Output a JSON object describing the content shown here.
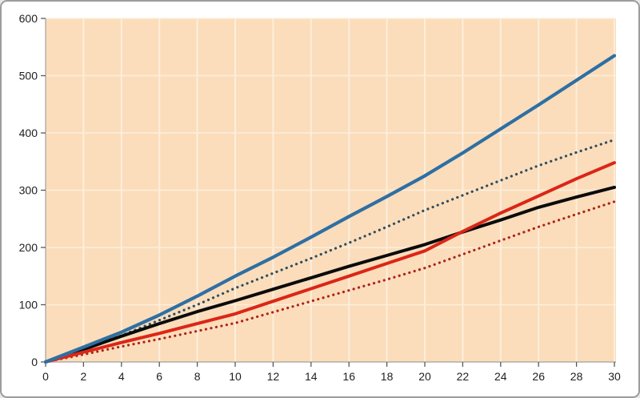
{
  "chart": {
    "frame_border_color": "#9c9c9c",
    "outer_background": "#ffffff",
    "plot_background": "#fbddbb",
    "gridline_color": "#fdeedc",
    "axis_line_color": "#a0a0a0",
    "tick_color": "#595959",
    "label_color": "#1f1f1f"
  },
  "chart_data": {
    "type": "line",
    "title": "",
    "xlabel": "",
    "ylabel": "",
    "legend": "none",
    "grid": "both",
    "xlim": [
      0,
      30
    ],
    "ylim": [
      0,
      600
    ],
    "x_tick_labels": [
      "0",
      "2",
      "4",
      "6",
      "8",
      "10",
      "12",
      "14",
      "16",
      "18",
      "20",
      "22",
      "24",
      "26",
      "28",
      "30"
    ],
    "y_tick_labels": [
      "0",
      "100",
      "200",
      "300",
      "400",
      "500",
      "600"
    ],
    "x_tick_values": [
      0,
      2,
      4,
      6,
      8,
      10,
      12,
      14,
      16,
      18,
      20,
      22,
      24,
      26,
      28,
      30
    ],
    "y_tick_values": [
      0,
      100,
      200,
      300,
      400,
      500,
      600
    ],
    "x": [
      0,
      2,
      4,
      6,
      8,
      10,
      12,
      14,
      16,
      18,
      20,
      22,
      24,
      26,
      28,
      30
    ],
    "series": [
      {
        "name": "blue-dotted",
        "color": "#2e4d60",
        "style": "dotted",
        "width": 3.2,
        "values": [
          0,
          23,
          46,
          73,
          100,
          129,
          155,
          181,
          208,
          236,
          265,
          291,
          317,
          343,
          366,
          388
        ]
      },
      {
        "name": "black-solid",
        "color": "#0b0b0b",
        "style": "solid",
        "width": 4,
        "values": [
          0,
          22,
          45,
          67,
          88,
          107,
          127,
          147,
          167,
          186,
          205,
          227,
          248,
          270,
          288,
          305
        ]
      },
      {
        "name": "red-dotted",
        "color": "#ae2318",
        "style": "dotted",
        "width": 3.2,
        "values": [
          0,
          13,
          27,
          40,
          54,
          68,
          87,
          106,
          125,
          144,
          164,
          188,
          212,
          236,
          258,
          280
        ]
      },
      {
        "name": "red-solid",
        "color": "#db2617",
        "style": "solid",
        "width": 4,
        "values": [
          0,
          17,
          34,
          50,
          67,
          84,
          106,
          128,
          150,
          172,
          194,
          228,
          260,
          290,
          320,
          348
        ]
      },
      {
        "name": "blue-solid",
        "color": "#2e6fa3",
        "style": "solid",
        "width": 4.2,
        "values": [
          0,
          26,
          52,
          82,
          115,
          150,
          183,
          218,
          254,
          289,
          325,
          365,
          407,
          449,
          492,
          535
        ]
      }
    ]
  }
}
